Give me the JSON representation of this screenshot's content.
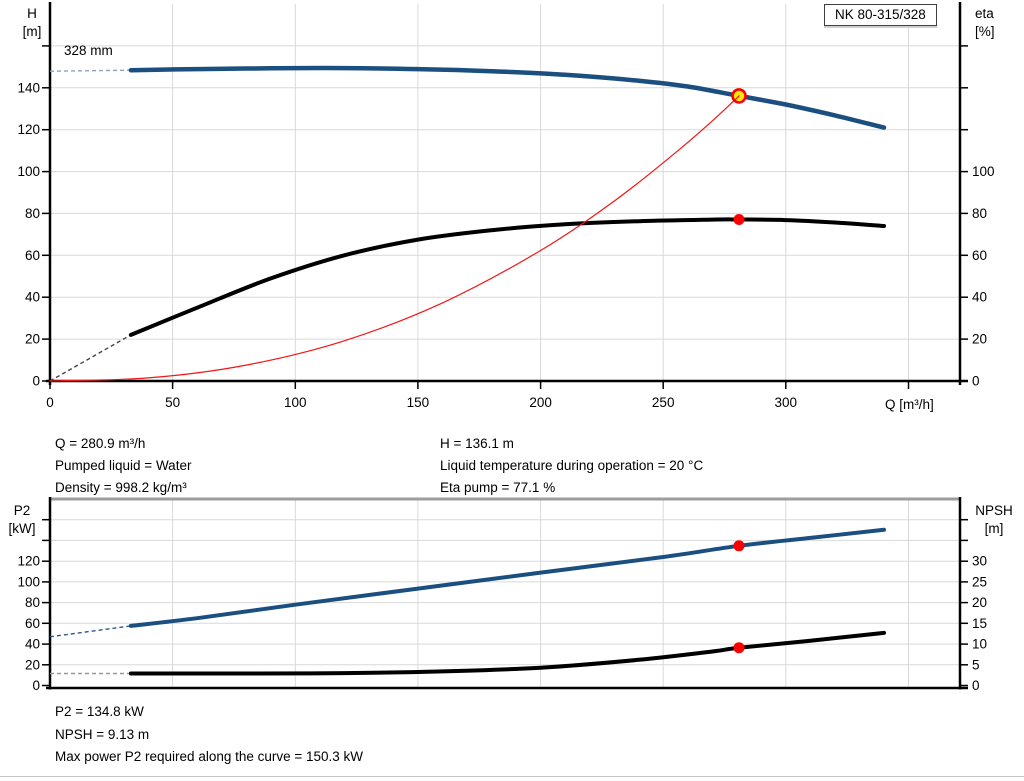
{
  "title_box": {
    "label": "NK 80-315/328"
  },
  "axis_labels": {
    "top_left_1": "H",
    "top_left_2": "[m]",
    "top_right_1": "eta",
    "top_right_2": "[%]",
    "x": "Q [m³/h]",
    "bottom_left_1": "P2",
    "bottom_left_2": "[kW]",
    "bottom_right_1": "NPSH",
    "bottom_right_2": "[m]"
  },
  "annotations": {
    "left": [
      "Q = 280.9 m³/h",
      "Pumped liquid = Water",
      "Density = 998.2 kg/m³"
    ],
    "right": [
      "H = 136.1 m",
      "Liquid temperature during operation = 20 °C",
      "Eta pump = 77.1 %"
    ],
    "bottom": [
      "P2 = 134.8 kW",
      "NPSH = 9.13 m",
      "Max power P2 required along the curve = 150.3 kW"
    ]
  },
  "colors": {
    "curve_blue": "#1b4f80",
    "curve_black": "#000000",
    "system_red": "#f21616",
    "marker_red": "#fa0202",
    "marker_yellow": "#ffe60a",
    "grid": "#d9d9d9",
    "axis": "#000000",
    "chart_top_border": "#9c9c9c",
    "dash_light_blue": "#8fa3bd",
    "dash_blue": "#2a5a8a",
    "dash_black": "#444444",
    "dash_gray": "#999999"
  },
  "chart_data": [
    {
      "type": "line",
      "name": "qh-eta-chart",
      "title": "NK 80-315/328",
      "impeller_label": "328 mm",
      "xlabel": "Q [m³/h]",
      "ylabel_left": "H [m]",
      "ylabel_right": "eta [%]",
      "xlim": [
        0,
        371
      ],
      "ylim_left": [
        0,
        180
      ],
      "ylim_right": [
        0,
        180
      ],
      "xticks_labeled": [
        0,
        50,
        100,
        150,
        200,
        250,
        300
      ],
      "xticks_all": [
        0,
        50,
        100,
        150,
        200,
        250,
        300,
        350
      ],
      "yticks_left_labeled": [
        0,
        20,
        40,
        60,
        80,
        100,
        120,
        140
      ],
      "yticks_left_all": [
        0,
        20,
        40,
        60,
        80,
        100,
        120,
        140,
        160
      ],
      "yticks_right_labeled": [
        0,
        20,
        40,
        60,
        80,
        100
      ],
      "yticks_right_all": [
        0,
        20,
        40,
        60,
        80,
        100,
        120,
        140,
        160
      ],
      "grid_x": [
        50,
        100,
        150,
        200,
        250,
        300,
        350
      ],
      "grid_y_left": [
        20,
        40,
        60,
        80,
        100,
        120,
        140,
        160
      ],
      "series": [
        {
          "name": "head-curve-328mm",
          "axis": "left",
          "color_key": "curve_blue",
          "width": 4.5,
          "lead": {
            "x": [
              0,
              33
            ],
            "v": [
              147.9,
              148.4
            ],
            "color_key": "dash_light_blue"
          },
          "x": [
            33,
            60,
            90,
            120,
            150,
            180,
            210,
            240,
            260,
            280.9,
            300,
            320,
            340
          ],
          "v": [
            148.4,
            148.9,
            149.3,
            149.4,
            148.9,
            147.9,
            146.2,
            143.4,
            140.6,
            136.1,
            132.0,
            126.8,
            121.0
          ]
        },
        {
          "name": "efficiency-curve",
          "axis": "right",
          "color_key": "curve_black",
          "width": 4,
          "lead": {
            "x": [
              0,
              33
            ],
            "v": [
              0,
              22
            ],
            "color_key": "dash_black"
          },
          "x": [
            33,
            60,
            90,
            120,
            150,
            180,
            210,
            240,
            270,
            280.9,
            300,
            320,
            340
          ],
          "v": [
            22,
            35,
            49,
            60,
            67.5,
            72,
            74.8,
            76.3,
            77.05,
            77.1,
            76.8,
            75.7,
            74.0
          ]
        },
        {
          "name": "system-curve",
          "axis": "left",
          "color_key": "system_red",
          "width": 1.2,
          "x": [
            0,
            40,
            80,
            120,
            160,
            200,
            230,
            255,
            270,
            280.9
          ],
          "v": [
            0,
            1.5,
            7.6,
            19.2,
            37.3,
            62.3,
            85.9,
            109,
            124.2,
            136.1
          ]
        }
      ],
      "markers": [
        {
          "name": "duty-point-qh",
          "x": 280.9,
          "v": 136.1,
          "axis": "left",
          "r": 6.5,
          "fill_key": "marker_yellow",
          "stroke_key": "marker_red",
          "stroke_width": 2.6
        },
        {
          "name": "duty-point-eta",
          "x": 280.9,
          "v": 77.1,
          "axis": "right",
          "r": 5.5,
          "fill_key": "marker_red"
        }
      ]
    },
    {
      "type": "line",
      "name": "p2-npsh-chart",
      "xlabel": "",
      "ylabel_left": "P2 [kW]",
      "ylabel_right": "NPSH [m]",
      "xlim": [
        0,
        371
      ],
      "ylim_left": [
        0,
        180
      ],
      "ylim_right": [
        0,
        45
      ],
      "xticks_labeled": [],
      "xticks_all": [],
      "yticks_left_labeled": [
        0,
        20,
        40,
        60,
        80,
        100,
        120
      ],
      "yticks_left_all": [
        0,
        20,
        40,
        60,
        80,
        100,
        120,
        140,
        160
      ],
      "yticks_right_labeled": [
        0,
        5,
        10,
        15,
        20,
        25,
        30
      ],
      "yticks_right_all": [
        0,
        5,
        10,
        15,
        20,
        25,
        30,
        35,
        40
      ],
      "grid_x": [
        50,
        100,
        150,
        200,
        250,
        300,
        350
      ],
      "grid_y_left": [
        20,
        40,
        60,
        80,
        100,
        120,
        140,
        160
      ],
      "series": [
        {
          "name": "p2-curve",
          "axis": "left",
          "color_key": "curve_blue",
          "width": 4,
          "lead": {
            "x": [
              0,
              33
            ],
            "v": [
              47,
              57.5
            ],
            "color_key": "dash_blue"
          },
          "x": [
            33,
            60,
            100,
            150,
            200,
            250,
            280.9,
            310,
            340
          ],
          "v": [
            57.5,
            65,
            78,
            93.5,
            109,
            124,
            134.8,
            142.5,
            150.3
          ]
        },
        {
          "name": "npsh-curve",
          "axis": "right",
          "color_key": "curve_black",
          "width": 4,
          "lead": {
            "x": [
              0,
              33
            ],
            "v": [
              2.9,
              2.9
            ],
            "color_key": "dash_gray"
          },
          "x": [
            33,
            80,
            120,
            160,
            200,
            240,
            270,
            280.9,
            310,
            340
          ],
          "v": [
            2.9,
            2.9,
            3.0,
            3.4,
            4.3,
            6.2,
            8.2,
            9.13,
            10.8,
            12.7
          ]
        }
      ],
      "markers": [
        {
          "name": "duty-point-p2",
          "x": 280.9,
          "v": 134.8,
          "axis": "left",
          "r": 5.5,
          "fill_key": "marker_red"
        },
        {
          "name": "duty-point-npsh",
          "x": 280.9,
          "v": 9.13,
          "axis": "right",
          "r": 5.5,
          "fill_key": "marker_red"
        }
      ]
    }
  ]
}
